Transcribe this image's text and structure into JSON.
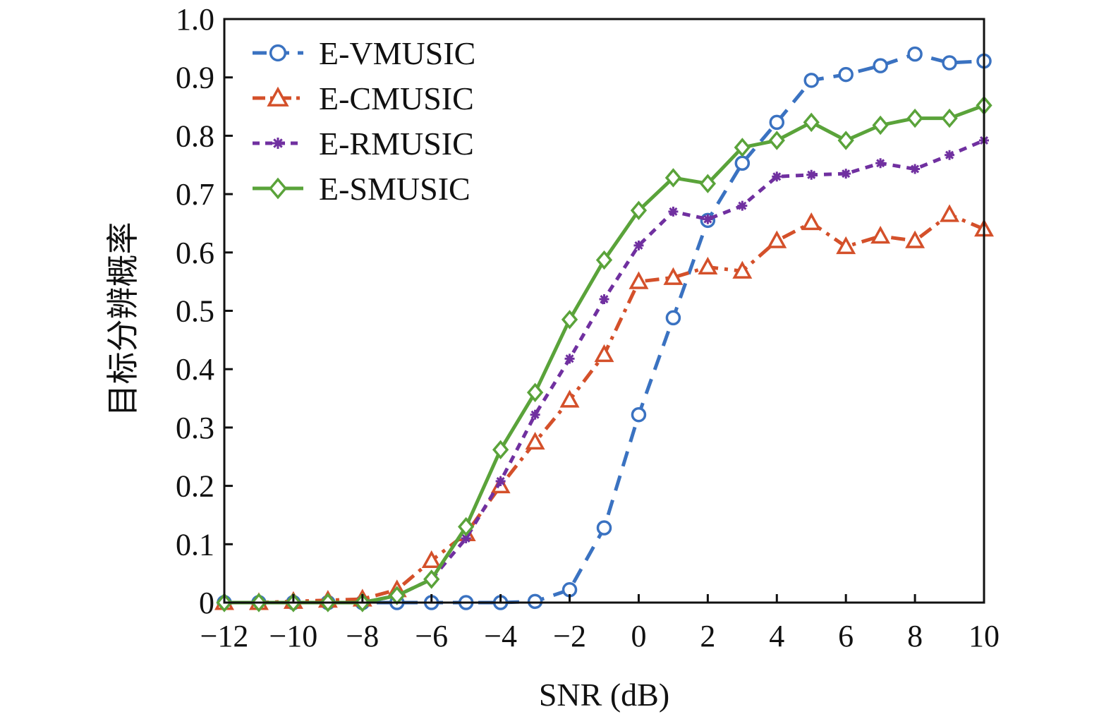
{
  "chart_data": {
    "type": "line",
    "xlabel": "SNR (dB)",
    "ylabel": "目标分辨概率",
    "xlim": [
      -12,
      10
    ],
    "ylim": [
      0,
      1.0
    ],
    "x_ticks": [
      -12,
      -10,
      -8,
      -6,
      -4,
      -2,
      0,
      2,
      4,
      6,
      8,
      10
    ],
    "x_tick_labels": [
      "−12",
      "−10",
      "−8",
      "−6",
      "−4",
      "−2",
      "0",
      "2",
      "4",
      "6",
      "8",
      "10"
    ],
    "y_ticks": [
      0,
      0.1,
      0.2,
      0.3,
      0.4,
      0.5,
      0.6,
      0.7,
      0.8,
      0.9,
      1.0
    ],
    "y_tick_labels": [
      "0",
      "0.1",
      "0.2",
      "0.3",
      "0.4",
      "0.5",
      "0.6",
      "0.7",
      "0.8",
      "0.9",
      "1.0"
    ],
    "grid": false,
    "legend_position": "top-left",
    "x": [
      -12,
      -11,
      -10,
      -9,
      -8,
      -7,
      -6,
      -5,
      -4,
      -3,
      -2,
      -1,
      0,
      1,
      2,
      3,
      4,
      5,
      6,
      7,
      8,
      9,
      10
    ],
    "series": [
      {
        "name": "E-VMUSIC",
        "color": "#3a72c1",
        "marker": "circle",
        "dash": "dashed",
        "values": [
          0,
          0,
          0,
          0,
          0,
          0,
          0,
          0,
          0,
          0.002,
          0.022,
          0.128,
          0.322,
          0.488,
          0.655,
          0.753,
          0.823,
          0.895,
          0.905,
          0.92,
          0.94,
          0.925,
          0.928
        ]
      },
      {
        "name": "E-CMUSIC",
        "color": "#d4502a",
        "marker": "triangle",
        "dash": "dashdot",
        "values": [
          0,
          0,
          0.002,
          0.004,
          0.006,
          0.022,
          0.072,
          0.118,
          0.2,
          0.275,
          0.347,
          0.425,
          0.55,
          0.557,
          0.575,
          0.568,
          0.62,
          0.651,
          0.61,
          0.628,
          0.62,
          0.665,
          0.64
        ]
      },
      {
        "name": "E-RMUSIC",
        "color": "#7030a0",
        "marker": "star",
        "dash": "dashed-short",
        "values": [
          0,
          0,
          0,
          0,
          0,
          0.012,
          0.04,
          0.11,
          0.208,
          0.322,
          0.418,
          0.52,
          0.612,
          0.67,
          0.657,
          0.68,
          0.73,
          0.733,
          0.735,
          0.753,
          0.743,
          0.767,
          0.792
        ]
      },
      {
        "name": "E-SMUSIC",
        "color": "#5aa33a",
        "marker": "diamond",
        "dash": "solid",
        "values": [
          0,
          0,
          0,
          0,
          0,
          0.012,
          0.04,
          0.13,
          0.262,
          0.36,
          0.485,
          0.587,
          0.672,
          0.728,
          0.718,
          0.78,
          0.792,
          0.823,
          0.792,
          0.818,
          0.83,
          0.83,
          0.852
        ]
      }
    ]
  }
}
